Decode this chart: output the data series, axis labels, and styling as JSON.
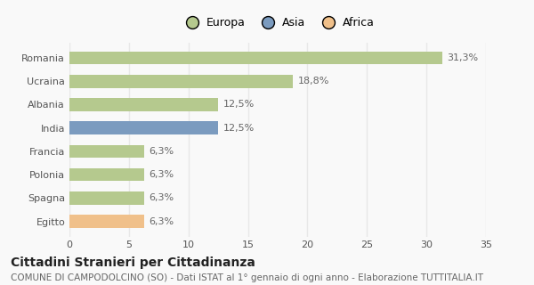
{
  "categories": [
    "Egitto",
    "Spagna",
    "Polonia",
    "Francia",
    "India",
    "Albania",
    "Ucraina",
    "Romania"
  ],
  "values": [
    6.3,
    6.3,
    6.3,
    6.3,
    12.5,
    12.5,
    18.8,
    31.3
  ],
  "bar_colors": [
    "#f0c08a",
    "#b5c98e",
    "#b5c98e",
    "#b5c98e",
    "#7b9bbf",
    "#b5c98e",
    "#b5c98e",
    "#b5c98e"
  ],
  "bar_labels": [
    "6,3%",
    "6,3%",
    "6,3%",
    "6,3%",
    "12,5%",
    "12,5%",
    "18,8%",
    "31,3%"
  ],
  "legend_labels": [
    "Europa",
    "Asia",
    "Africa"
  ],
  "legend_colors": [
    "#b5c98e",
    "#7b9bbf",
    "#f0c08a"
  ],
  "title": "Cittadini Stranieri per Cittadinanza",
  "subtitle": "COMUNE DI CAMPODOLCINO (SO) - Dati ISTAT al 1° gennaio di ogni anno - Elaborazione TUTTITALIA.IT",
  "xlim": [
    0,
    35
  ],
  "xticks": [
    0,
    5,
    10,
    15,
    20,
    25,
    30,
    35
  ],
  "background_color": "#f9f9f9",
  "grid_color": "#e8e8e8",
  "title_fontsize": 10,
  "subtitle_fontsize": 7.5,
  "label_fontsize": 8,
  "tick_fontsize": 8,
  "legend_fontsize": 9
}
